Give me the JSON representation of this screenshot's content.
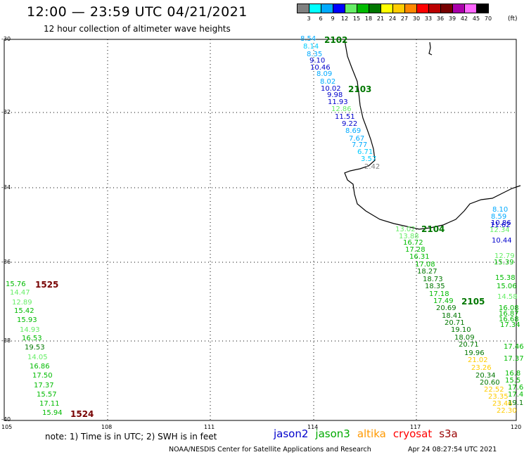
{
  "header": {
    "title": "12:00 — 23:59 UTC 04/21/2021",
    "subtitle": "12 hour collection of altimeter wave heights"
  },
  "legend": {
    "unit": "(ft)",
    "bins": [
      {
        "label": "3",
        "color": "#808080"
      },
      {
        "label": "6",
        "color": "#00ffff"
      },
      {
        "label": "9",
        "color": "#00aaff"
      },
      {
        "label": "12",
        "color": "#0000ff"
      },
      {
        "label": "15",
        "color": "#66ee66"
      },
      {
        "label": "18",
        "color": "#00bb00"
      },
      {
        "label": "21",
        "color": "#007700"
      },
      {
        "label": "24",
        "color": "#ffff00"
      },
      {
        "label": "27",
        "color": "#ffcc00"
      },
      {
        "label": "30",
        "color": "#ff8800"
      },
      {
        "label": "33",
        "color": "#ff0000"
      },
      {
        "label": "36",
        "color": "#bb0000"
      },
      {
        "label": "39",
        "color": "#770000"
      },
      {
        "label": "42",
        "color": "#aa00aa"
      },
      {
        "label": "45",
        "color": "#ff66ff"
      },
      {
        "label": "70",
        "color": "#000000"
      }
    ]
  },
  "axes": {
    "lat_labels": [
      "-30",
      "-32",
      "-34",
      "-36",
      "-38",
      "-40"
    ],
    "lon_labels": [
      "105",
      "108",
      "111",
      "114",
      "117",
      "120"
    ]
  },
  "passes": [
    {
      "label": "2102",
      "color": "#007700"
    },
    {
      "label": "2103",
      "color": "#007700"
    },
    {
      "label": "2104",
      "color": "#007700"
    },
    {
      "label": "2105",
      "color": "#007700"
    },
    {
      "label": "1525",
      "color": "#770000"
    },
    {
      "label": "1524",
      "color": "#770000"
    }
  ],
  "observations": [
    {
      "v": "8.54",
      "c": "#00aaff"
    },
    {
      "v": "8.14",
      "c": "#00ccff"
    },
    {
      "v": "8.35",
      "c": "#00aaff"
    },
    {
      "v": "9.10",
      "c": "#0000cc"
    },
    {
      "v": "10.46",
      "c": "#0000cc"
    },
    {
      "v": "8.09",
      "c": "#00aaff"
    },
    {
      "v": "8.02",
      "c": "#00aaff"
    },
    {
      "v": "10.02",
      "c": "#0000cc"
    },
    {
      "v": "9.98",
      "c": "#0000cc"
    },
    {
      "v": "11.93",
      "c": "#0000cc"
    },
    {
      "v": "12.86",
      "c": "#66ee66"
    },
    {
      "v": "11.51",
      "c": "#0000cc"
    },
    {
      "v": "9.22",
      "c": "#0000cc"
    },
    {
      "v": "8.69",
      "c": "#00aaff"
    },
    {
      "v": "7.67",
      "c": "#00aaff"
    },
    {
      "v": "7.77",
      "c": "#00aaff"
    },
    {
      "v": "6.71",
      "c": "#00ccff"
    },
    {
      "v": "3.57",
      "c": "#00ccff"
    },
    {
      "v": "2.42",
      "c": "#808080"
    },
    {
      "v": "13.02",
      "c": "#66ee66"
    },
    {
      "v": "13.88",
      "c": "#66ee66"
    },
    {
      "v": "16.72",
      "c": "#00bb00"
    },
    {
      "v": "17.28",
      "c": "#00bb00"
    },
    {
      "v": "16.31",
      "c": "#00bb00"
    },
    {
      "v": "17.08",
      "c": "#00bb00"
    },
    {
      "v": "18.27",
      "c": "#007700"
    },
    {
      "v": "18.73",
      "c": "#007700"
    },
    {
      "v": "18.35",
      "c": "#007700"
    },
    {
      "v": "17.18",
      "c": "#00bb00"
    },
    {
      "v": "17.49",
      "c": "#00bb00"
    },
    {
      "v": "20.69",
      "c": "#007700"
    },
    {
      "v": "18.41",
      "c": "#007700"
    },
    {
      "v": "20.71",
      "c": "#007700"
    },
    {
      "v": "19.10",
      "c": "#007700"
    },
    {
      "v": "18.09",
      "c": "#007700"
    },
    {
      "v": "20.71",
      "c": "#007700"
    },
    {
      "v": "19.96",
      "c": "#007700"
    },
    {
      "v": "21.02",
      "c": "#ffcc00"
    },
    {
      "v": "23.26",
      "c": "#ffcc00"
    },
    {
      "v": "20.34",
      "c": "#007700"
    },
    {
      "v": "20.60",
      "c": "#007700"
    },
    {
      "v": "22.52",
      "c": "#ffcc00"
    },
    {
      "v": "23.35",
      "c": "#ffcc00"
    },
    {
      "v": "23.46",
      "c": "#ffcc00"
    },
    {
      "v": "22.30",
      "c": "#ffcc00"
    },
    {
      "v": "8.10",
      "c": "#00aaff"
    },
    {
      "v": "8.59",
      "c": "#00aaff"
    },
    {
      "v": "10.86",
      "c": "#0000cc"
    },
    {
      "v": "11.62",
      "c": "#0000cc"
    },
    {
      "v": "12.34",
      "c": "#66ee66"
    },
    {
      "v": "10.44",
      "c": "#0000cc"
    },
    {
      "v": "12.79",
      "c": "#66ee66"
    },
    {
      "v": "15.39",
      "c": "#00bb00"
    },
    {
      "v": "15.38",
      "c": "#00bb00"
    },
    {
      "v": "15.06",
      "c": "#00bb00"
    },
    {
      "v": "14.58",
      "c": "#66ee66"
    },
    {
      "v": "16.08",
      "c": "#00bb00"
    },
    {
      "v": "16.87",
      "c": "#00bb00"
    },
    {
      "v": "16.68",
      "c": "#00bb00"
    },
    {
      "v": "17.34",
      "c": "#00bb00"
    },
    {
      "v": "17.46",
      "c": "#00bb00"
    },
    {
      "v": "17.37",
      "c": "#00bb00"
    },
    {
      "v": "16.8",
      "c": "#00bb00"
    },
    {
      "v": "15.5",
      "c": "#00bb00"
    },
    {
      "v": "17.6",
      "c": "#00bb00"
    },
    {
      "v": "17.4",
      "c": "#00bb00"
    },
    {
      "v": "19.1",
      "c": "#007700"
    },
    {
      "v": "15.76",
      "c": "#00bb00"
    },
    {
      "v": "14.47",
      "c": "#66ee66"
    },
    {
      "v": "12.89",
      "c": "#66ee66"
    },
    {
      "v": "15.42",
      "c": "#00bb00"
    },
    {
      "v": "15.93",
      "c": "#00bb00"
    },
    {
      "v": "14.93",
      "c": "#66ee66"
    },
    {
      "v": "16.53",
      "c": "#00bb00"
    },
    {
      "v": "19.53",
      "c": "#007700"
    },
    {
      "v": "14.05",
      "c": "#66ee66"
    },
    {
      "v": "16.86",
      "c": "#00bb00"
    },
    {
      "v": "17.50",
      "c": "#00bb00"
    },
    {
      "v": "17.37",
      "c": "#00bb00"
    },
    {
      "v": "15.57",
      "c": "#00bb00"
    },
    {
      "v": "17.11",
      "c": "#00bb00"
    },
    {
      "v": "15.94",
      "c": "#00bb00"
    }
  ],
  "footer": {
    "note": "note: 1) Time is in UTC; 2) SWH is in feet",
    "satellites": [
      {
        "name": "jason2",
        "color": "#0000cc"
      },
      {
        "name": "jason3",
        "color": "#00aa00"
      },
      {
        "name": "altika",
        "color": "#ff9900"
      },
      {
        "name": "cryosat",
        "color": "#ff0000"
      },
      {
        "name": "s3a",
        "color": "#990000"
      }
    ],
    "credit": "NOAA/NESDIS Center for Satellite Applications and Research",
    "timestamp": "Apr 24 08:27:54 UTC 2021"
  }
}
